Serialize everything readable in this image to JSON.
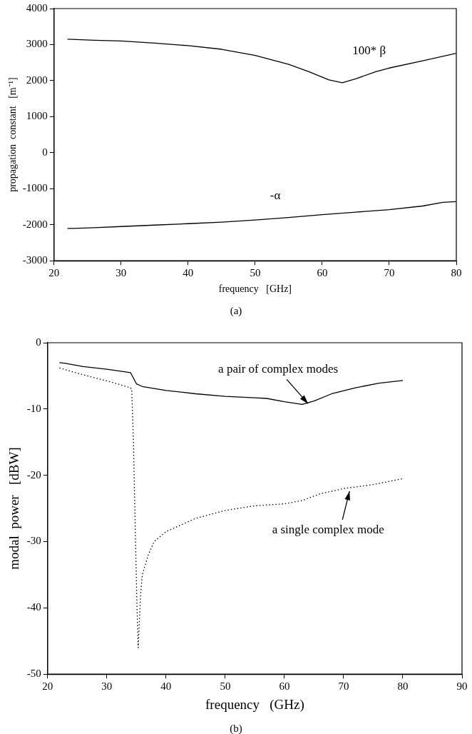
{
  "chart_data": [
    {
      "type": "line",
      "xlabel": "frequency   [GHz]",
      "ylabel": "propagation  constant   [m⁻¹]",
      "xlim": [
        20,
        80
      ],
      "xticks": [
        20,
        30,
        40,
        50,
        60,
        70,
        80
      ],
      "ylim": [
        -3000,
        4000
      ],
      "yticks": [
        -3000,
        -2000,
        -1000,
        0,
        1000,
        2000,
        3000,
        4000
      ],
      "grid": false,
      "legend": false,
      "marker": "none",
      "series": [
        {
          "color": "#000000",
          "line_style": "solid",
          "x": [
            22,
            26,
            30,
            35,
            40,
            45,
            50,
            55,
            58,
            61,
            63,
            65,
            68,
            70,
            75,
            80
          ],
          "values": [
            3150,
            3120,
            3100,
            3040,
            2970,
            2870,
            2700,
            2450,
            2250,
            2020,
            1940,
            2050,
            2250,
            2350,
            2550,
            2760
          ]
        },
        {
          "color": "#000000",
          "line_style": "solid",
          "x": [
            22,
            23,
            26,
            30,
            35,
            40,
            45,
            50,
            55,
            60,
            65,
            70,
            75,
            78,
            80
          ],
          "values": [
            -2100,
            -2100,
            -2080,
            -2050,
            -2010,
            -1970,
            -1930,
            -1870,
            -1800,
            -1720,
            -1650,
            -1580,
            -1480,
            -1380,
            -1360
          ]
        }
      ],
      "annotations": [
        {
          "text": "100* β",
          "x": 67,
          "y": 2180
        },
        {
          "text": "-α",
          "x": 53,
          "y": -1830
        },
        "(a)"
      ]
    },
    {
      "type": "line",
      "xlabel": "frequency   (GHz)",
      "ylabel": "modal  power   [dBW]",
      "xlim": [
        20,
        90
      ],
      "xticks": [
        20,
        30,
        40,
        50,
        60,
        70,
        80,
        90
      ],
      "ylim": [
        -50,
        0
      ],
      "yticks": [
        -50,
        -40,
        -30,
        -20,
        -10,
        0
      ],
      "grid": false,
      "legend": false,
      "marker": "none",
      "series": [
        {
          "color": "#000000",
          "line_style": "solid",
          "x": [
            22,
            23,
            26,
            30,
            34,
            35,
            36,
            40,
            45,
            50,
            55,
            57,
            60,
            63,
            65,
            68,
            72,
            76,
            80
          ],
          "values": [
            -3,
            -3.1,
            -3.6,
            -4,
            -4.5,
            -6.2,
            -6.6,
            -7.2,
            -7.7,
            -8.1,
            -8.3,
            -8.4,
            -8.9,
            -9.3,
            -8.8,
            -7.7,
            -6.8,
            -6.1,
            -5.7
          ]
        },
        {
          "color": "#000000",
          "line_style": "dotted",
          "x": [
            22,
            25,
            28,
            31,
            34,
            34.2,
            34.5,
            34.8,
            35.1,
            35.3,
            35.5,
            35.7,
            36,
            37,
            38,
            40,
            45,
            50,
            55,
            60,
            63,
            66,
            70,
            75,
            80
          ],
          "values": [
            -3.8,
            -4.6,
            -5.3,
            -6,
            -6.8,
            -7,
            -15,
            -28,
            -40,
            -46,
            -42,
            -38,
            -35,
            -32,
            -30,
            -28.5,
            -26.5,
            -25.3,
            -24.6,
            -24.3,
            -23.8,
            -22.8,
            -22,
            -21.4,
            -20.5
          ]
        }
      ],
      "annotations": [
        {
          "text": "a pair of complex modes",
          "x": 64,
          "y": -9.2
        },
        {
          "text": "a single complex mode",
          "x": 71,
          "y": -22.4
        },
        "(b)"
      ]
    }
  ]
}
